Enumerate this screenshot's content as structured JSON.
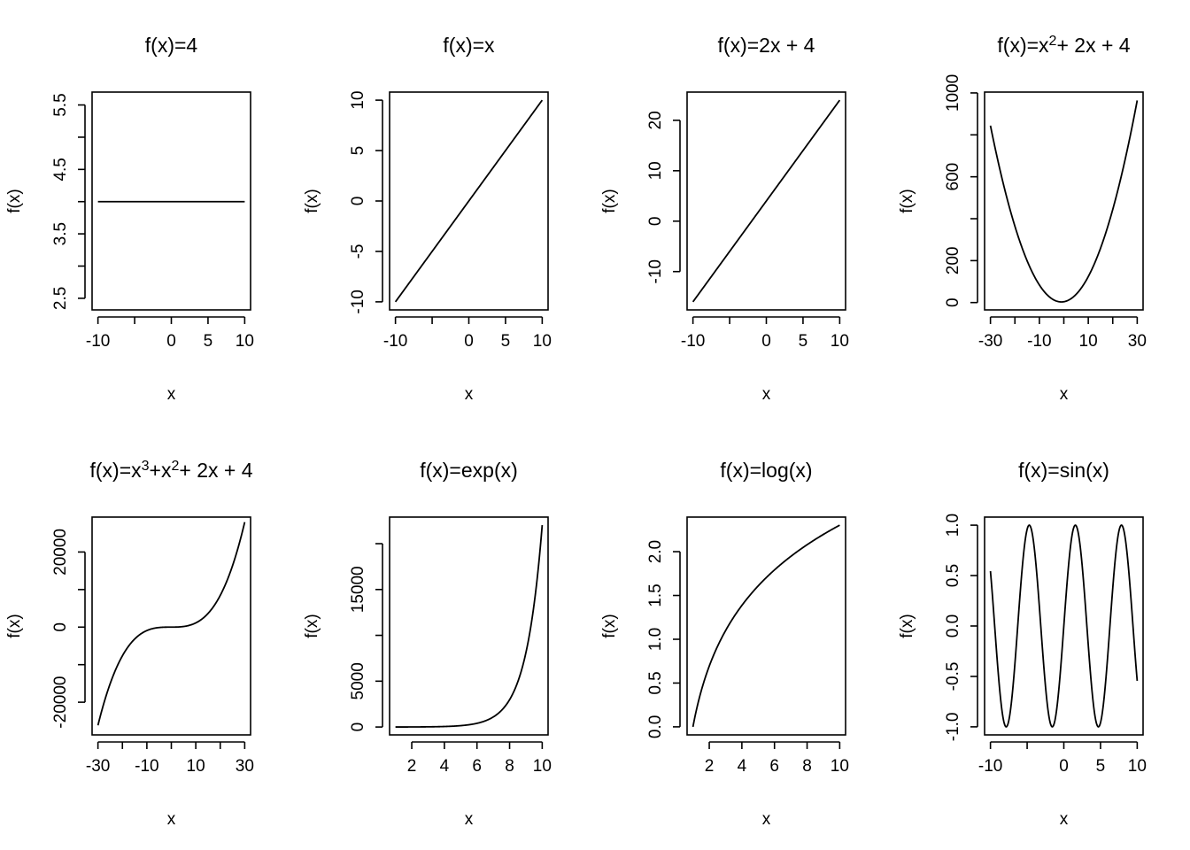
{
  "figure": {
    "background": "#ffffff",
    "line_color": "#000000"
  },
  "chart_data": [
    {
      "type": "line",
      "title_parts": [
        {
          "t": "f(x)=4"
        }
      ],
      "xlabel": "x",
      "ylabel": "f(x)",
      "fn": "constant",
      "x_range": [
        -10,
        10
      ],
      "xlim": [
        -10.8,
        10.8
      ],
      "ylim": [
        2.32,
        5.7
      ],
      "x_ticks": [
        -10,
        -5,
        0,
        5,
        10
      ],
      "x_tick_labels": [
        "-10",
        "",
        "0",
        "5",
        "10"
      ],
      "y_ticks": [
        2.5,
        3,
        3.5,
        4,
        4.5,
        5,
        5.5
      ],
      "y_tick_labels": [
        "2.5",
        "",
        "3.5",
        "",
        "4.5",
        "",
        "5.5"
      ]
    },
    {
      "type": "line",
      "title_parts": [
        {
          "t": "f(x)=x"
        }
      ],
      "xlabel": "x",
      "ylabel": "f(x)",
      "fn": "identity",
      "x_range": [
        -10,
        10
      ],
      "xlim": [
        -10.8,
        10.8
      ],
      "ylim": [
        -10.8,
        10.8
      ],
      "x_ticks": [
        -10,
        -5,
        0,
        5,
        10
      ],
      "x_tick_labels": [
        "-10",
        "",
        "0",
        "5",
        "10"
      ],
      "y_ticks": [
        -10,
        -5,
        0,
        5,
        10
      ],
      "y_tick_labels": [
        "-10",
        "-5",
        "0",
        "5",
        "10"
      ]
    },
    {
      "type": "line",
      "title_parts": [
        {
          "t": "f(x)=2x + 4"
        }
      ],
      "xlabel": "x",
      "ylabel": "f(x)",
      "fn": "linear",
      "x_range": [
        -10,
        10
      ],
      "xlim": [
        -10.8,
        10.8
      ],
      "ylim": [
        -17.6,
        25.6
      ],
      "x_ticks": [
        -10,
        -5,
        0,
        5,
        10
      ],
      "x_tick_labels": [
        "-10",
        "",
        "0",
        "5",
        "10"
      ],
      "y_ticks": [
        -10,
        0,
        10,
        20
      ],
      "y_tick_labels": [
        "-10",
        "0",
        "10",
        "20"
      ]
    },
    {
      "type": "line",
      "title_parts": [
        {
          "t": "f(x)=x"
        },
        {
          "t": "2",
          "sup": true
        },
        {
          "t": "+ 2x + 4"
        }
      ],
      "xlabel": "x",
      "ylabel": "f(x)",
      "fn": "quadratic",
      "x_range": [
        -30,
        30
      ],
      "xlim": [
        -32.4,
        32.4
      ],
      "ylim": [
        -35,
        1004
      ],
      "x_ticks": [
        -30,
        -20,
        -10,
        0,
        10,
        20,
        30
      ],
      "x_tick_labels": [
        "-30",
        "",
        "-10",
        "",
        "10",
        "",
        "30"
      ],
      "y_ticks": [
        0,
        200,
        400,
        600,
        800,
        1000
      ],
      "y_tick_labels": [
        "0",
        "200",
        "",
        "600",
        "",
        "1000"
      ]
    },
    {
      "type": "line",
      "title_parts": [
        {
          "t": "f(x)=x"
        },
        {
          "t": "3",
          "sup": true
        },
        {
          "t": "+x"
        },
        {
          "t": "2",
          "sup": true
        },
        {
          "t": "+ 2x + 4"
        }
      ],
      "xlabel": "x",
      "ylabel": "f(x)",
      "fn": "cubic",
      "x_range": [
        -30,
        30
      ],
      "xlim": [
        -32.4,
        32.4
      ],
      "ylim": [
        -28700,
        29300
      ],
      "x_ticks": [
        -30,
        -20,
        -10,
        0,
        10,
        20,
        30
      ],
      "x_tick_labels": [
        "-30",
        "",
        "-10",
        "",
        "10",
        "",
        "30"
      ],
      "y_ticks": [
        -20000,
        -10000,
        0,
        10000,
        20000
      ],
      "y_tick_labels": [
        "-20000",
        "",
        "0",
        "",
        "20000"
      ]
    },
    {
      "type": "line",
      "title_parts": [
        {
          "t": "f(x)=exp(x)"
        }
      ],
      "xlabel": "x",
      "ylabel": "f(x)",
      "fn": "exp",
      "x_range": [
        1,
        10
      ],
      "xlim": [
        0.64,
        10.36
      ],
      "ylim": [
        -860,
        22900
      ],
      "x_ticks": [
        2,
        4,
        6,
        8,
        10
      ],
      "x_tick_labels": [
        "2",
        "4",
        "6",
        "8",
        "10"
      ],
      "y_ticks": [
        0,
        5000,
        10000,
        15000,
        20000
      ],
      "y_tick_labels": [
        "0",
        "5000",
        "",
        "15000",
        ""
      ]
    },
    {
      "type": "line",
      "title_parts": [
        {
          "t": "f(x)=log(x)"
        }
      ],
      "xlabel": "x",
      "ylabel": "f(x)",
      "fn": "log",
      "x_range": [
        1,
        10
      ],
      "xlim": [
        0.64,
        10.36
      ],
      "ylim": [
        -0.092,
        2.395
      ],
      "x_ticks": [
        2,
        4,
        6,
        8,
        10
      ],
      "x_tick_labels": [
        "2",
        "4",
        "6",
        "8",
        "10"
      ],
      "y_ticks": [
        0,
        0.5,
        1,
        1.5,
        2
      ],
      "y_tick_labels": [
        "0.0",
        "0.5",
        "1.0",
        "1.5",
        "2.0"
      ]
    },
    {
      "type": "line",
      "title_parts": [
        {
          "t": "f(x)=sin(x)"
        }
      ],
      "xlabel": "x",
      "ylabel": "f(x)",
      "fn": "sin",
      "x_range": [
        -10,
        10
      ],
      "xlim": [
        -10.8,
        10.8
      ],
      "ylim": [
        -1.08,
        1.08
      ],
      "x_ticks": [
        -10,
        -5,
        0,
        5,
        10
      ],
      "x_tick_labels": [
        "-10",
        "",
        "0",
        "5",
        "10"
      ],
      "y_ticks": [
        -1,
        -0.5,
        0,
        0.5,
        1
      ],
      "y_tick_labels": [
        "-1.0",
        "-0.5",
        "0.0",
        "0.5",
        "1.0"
      ]
    }
  ]
}
